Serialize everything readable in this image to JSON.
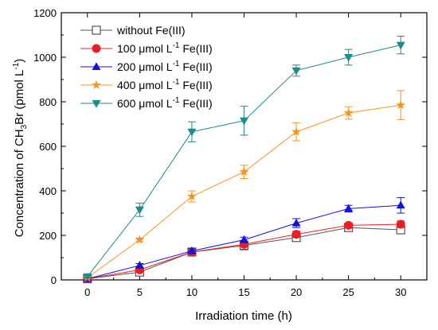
{
  "chart_data": {
    "type": "line",
    "title": "",
    "xlabel": "Irradiation time (h)",
    "ylabel_parts": [
      "Concentration of CH",
      "3",
      "Br (pmol L",
      "-1",
      ")"
    ],
    "x": [
      0,
      5,
      10,
      15,
      20,
      25,
      30
    ],
    "xlim": [
      -2.5,
      32.5
    ],
    "ylim": [
      0,
      1200
    ],
    "xticks": [
      0,
      5,
      10,
      15,
      20,
      25,
      30
    ],
    "yticks": [
      0,
      200,
      400,
      600,
      800,
      1000,
      1200
    ],
    "grid": false,
    "legend_position": "top-left",
    "series": [
      {
        "name_parts": [
          "without Fe(III)"
        ],
        "color": "#555555",
        "marker": "open-square",
        "values": [
          5,
          35,
          125,
          155,
          190,
          235,
          225
        ],
        "errors": [
          5,
          10,
          12,
          20,
          15,
          12,
          18
        ]
      },
      {
        "name_parts": [
          "100 μmol L",
          "-1",
          " Fe(III)"
        ],
        "color": "#ee1c24",
        "marker": "circle",
        "values": [
          5,
          45,
          125,
          160,
          205,
          245,
          250
        ],
        "errors": [
          5,
          8,
          10,
          12,
          14,
          10,
          15
        ]
      },
      {
        "name_parts": [
          "200 μmol L",
          "-1",
          " Fe(III)"
        ],
        "color": "#1111dd",
        "marker": "triangle-up",
        "values": [
          5,
          65,
          130,
          180,
          255,
          320,
          335
        ],
        "errors": [
          5,
          8,
          12,
          12,
          20,
          15,
          35
        ]
      },
      {
        "name_parts": [
          "400 μmol L",
          "-1",
          " Fe(III)"
        ],
        "color": "#f7941d",
        "marker": "star",
        "values": [
          10,
          180,
          375,
          485,
          665,
          750,
          785
        ],
        "errors": [
          5,
          8,
          25,
          30,
          40,
          28,
          65
        ]
      },
      {
        "name_parts": [
          "600 μmol L",
          "-1",
          " Fe(III)"
        ],
        "color": "#1f8a8a",
        "marker": "triangle-down",
        "values": [
          15,
          315,
          665,
          715,
          940,
          1000,
          1055
        ],
        "errors": [
          5,
          30,
          45,
          65,
          25,
          35,
          40
        ]
      }
    ]
  }
}
